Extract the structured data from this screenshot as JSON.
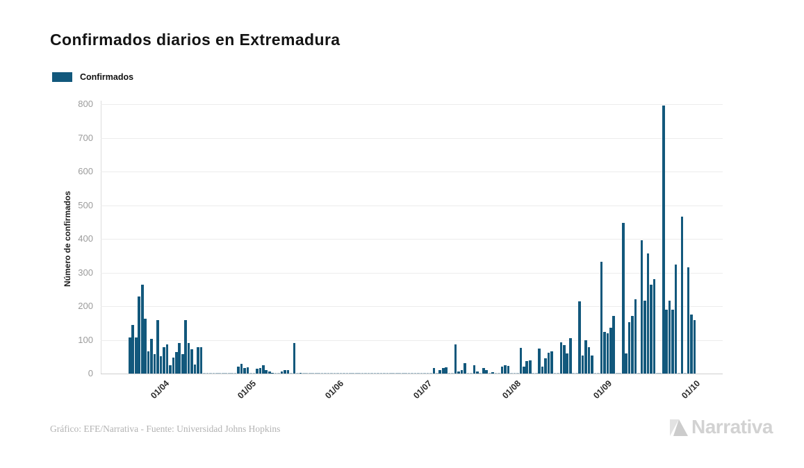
{
  "header": {
    "title": "Confirmados diarios en Extremadura"
  },
  "legend": {
    "label": "Confirmados",
    "swatch_color": "#12587C"
  },
  "footer": {
    "credit": "Gráfico: EFE/Narrativa - Fuente: Universidad Johns Hopkins",
    "brand": "Narrativa"
  },
  "chart_data": {
    "type": "bar",
    "title": "Confirmados diarios en Extremadura",
    "xlabel": "",
    "ylabel": "Número de confirmados",
    "ylim": [
      0,
      800
    ],
    "yticks": [
      0,
      100,
      200,
      300,
      400,
      500,
      600,
      700,
      800
    ],
    "grid": true,
    "legend_position": "top-left",
    "series_name": "Confirmados",
    "bar_color": "#12587C",
    "x_unit": "daily dates (dd/mm ticks at month starts)",
    "xticks": [
      {
        "label": "01/04",
        "slot": 8.3
      },
      {
        "label": "01/05",
        "slot": 36.3
      },
      {
        "label": "01/06",
        "slot": 64.6
      },
      {
        "label": "01/07",
        "slot": 93.0
      },
      {
        "label": "01/08",
        "slot": 121.7
      },
      {
        "label": "01/09",
        "slot": 150.9
      },
      {
        "label": "01/10",
        "slot": 179.4
      }
    ],
    "values": [
      108,
      145,
      108,
      228,
      263,
      162,
      67,
      103,
      58,
      159,
      51,
      79,
      86,
      24,
      48,
      65,
      90,
      58,
      159,
      90,
      72,
      27,
      79,
      79,
      0,
      0,
      0,
      0,
      0,
      0,
      0,
      0,
      0,
      0,
      0,
      21,
      28,
      17,
      19,
      0,
      0,
      14,
      17,
      24,
      10,
      7,
      3,
      0,
      0,
      7,
      10,
      10,
      0,
      90,
      0,
      3,
      0,
      0,
      0,
      0,
      0,
      0,
      0,
      0,
      0,
      0,
      0,
      0,
      0,
      0,
      0,
      0,
      0,
      0,
      0,
      0,
      0,
      0,
      0,
      0,
      0,
      0,
      0,
      0,
      0,
      0,
      0,
      0,
      0,
      0,
      0,
      0,
      0,
      0,
      0,
      0,
      0,
      0,
      16,
      0,
      10,
      16,
      19,
      0,
      0,
      86,
      7,
      10,
      31,
      0,
      0,
      24,
      7,
      0,
      17,
      10,
      0,
      5,
      0,
      0,
      21,
      25,
      23,
      0,
      0,
      0,
      76,
      21,
      37,
      40,
      0,
      0,
      74,
      21,
      45,
      62,
      67,
      0,
      0,
      93,
      85,
      60,
      105,
      0,
      0,
      215,
      54,
      100,
      78,
      54,
      0,
      0,
      333,
      124,
      119,
      137,
      172,
      0,
      0,
      447,
      60,
      153,
      172,
      221,
      0,
      395,
      217,
      357,
      265,
      281,
      0,
      0,
      795,
      190,
      217,
      190,
      323,
      0,
      466,
      0,
      316,
      176,
      159
    ]
  }
}
